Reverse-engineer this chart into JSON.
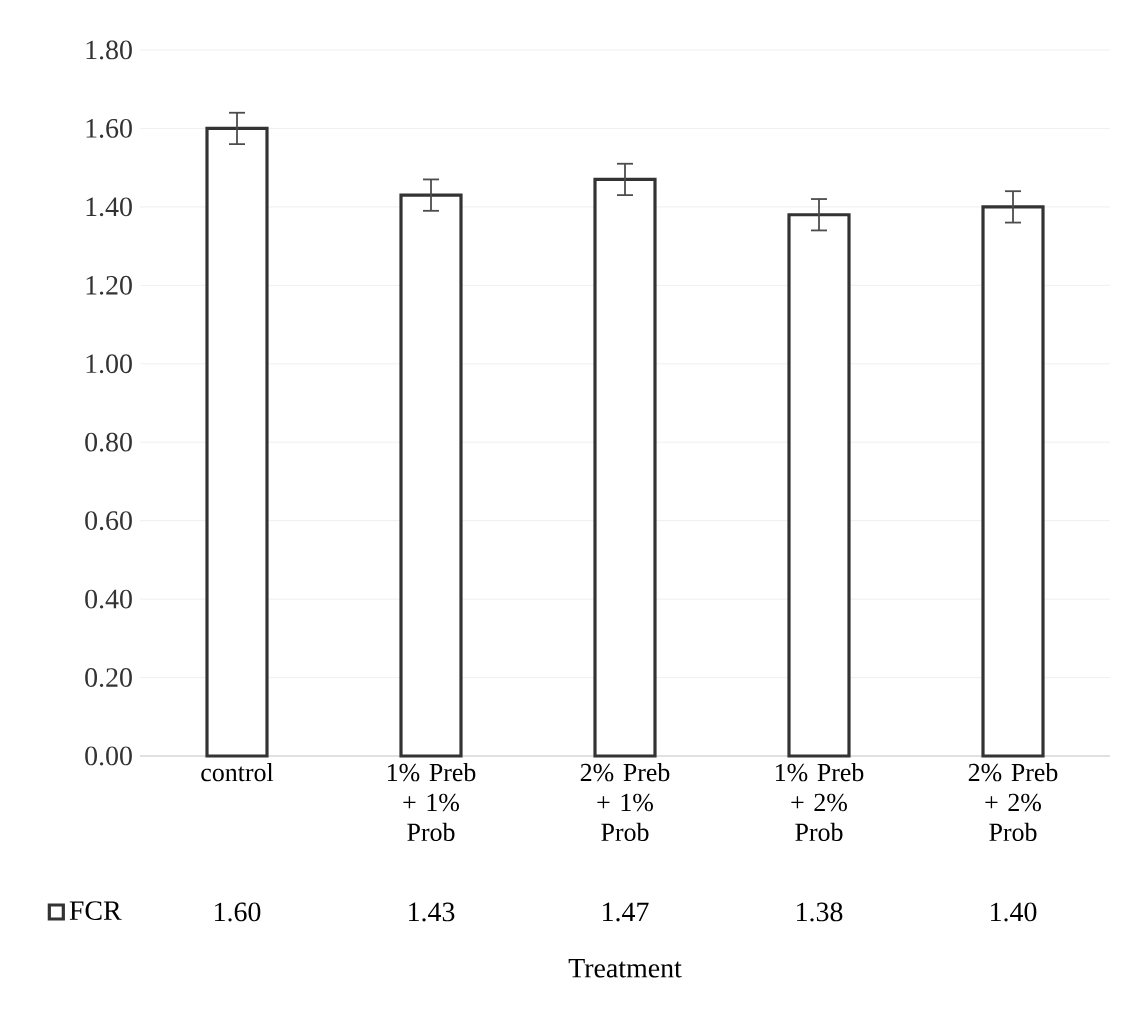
{
  "chart_data": {
    "type": "bar",
    "xlabel": "Treatment",
    "categories": [
      "control",
      "1% Preb + 1% Prob",
      "2% Preb + 1% Prob",
      "1% Preb + 2% Prob",
      "2% Preb + 2% Prob"
    ],
    "series": [
      {
        "name": "FCR",
        "color": "#ffffff",
        "values": [
          1.6,
          1.43,
          1.47,
          1.38,
          1.4
        ],
        "errors": [
          0.04,
          0.04,
          0.04,
          0.04,
          0.04
        ],
        "value_labels": [
          "1.60",
          "1.43",
          "1.47",
          "1.38",
          "1.40"
        ]
      }
    ],
    "ylim": [
      0,
      1.8
    ],
    "yticks": [
      {
        "value": 0,
        "label": "0.00"
      },
      {
        "value": 0.2,
        "label": "0.20"
      },
      {
        "value": 0.4,
        "label": "0.40"
      },
      {
        "value": 0.6,
        "label": "0.60"
      },
      {
        "value": 0.8,
        "label": "0.80"
      },
      {
        "value": 1.0,
        "label": "1.00"
      },
      {
        "value": 1.2,
        "label": "1.20"
      },
      {
        "value": 1.4,
        "label": "1.40"
      },
      {
        "value": 1.6,
        "label": "1.60"
      },
      {
        "value": 1.8,
        "label": "1.80"
      }
    ],
    "grid": "y",
    "legend": "bottom left"
  }
}
